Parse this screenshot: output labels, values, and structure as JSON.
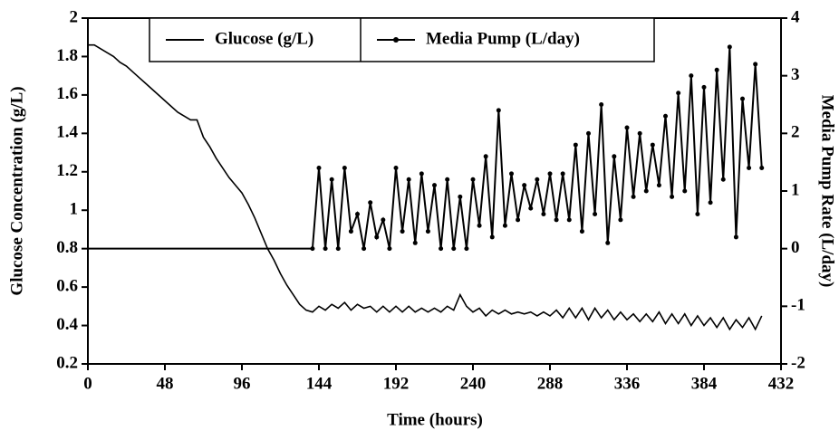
{
  "chart_data": {
    "type": "line",
    "xlabel": "Time (hours)",
    "ylabel": "Glucose Concentration (g/L)",
    "y2label": "Media Pump Rate (L/day)",
    "xlim": [
      0,
      432
    ],
    "xticks": [
      0,
      48,
      96,
      144,
      192,
      240,
      288,
      336,
      384,
      432
    ],
    "ylim": [
      0.2,
      2
    ],
    "yticks": [
      0.2,
      0.4,
      0.6,
      0.8,
      1,
      1.2,
      1.4,
      1.6,
      1.8,
      2
    ],
    "y2lim": [
      -2,
      4
    ],
    "y2ticks": [
      -2,
      -1,
      0,
      1,
      2,
      3,
      4
    ],
    "legend": "top",
    "series": [
      {
        "name": "Glucose (g/L)",
        "color": "#000000",
        "marker": false,
        "x": [
          0,
          4,
          8,
          12,
          16,
          20,
          24,
          28,
          32,
          36,
          40,
          44,
          48,
          52,
          56,
          60,
          64,
          68,
          72,
          76,
          80,
          84,
          88,
          92,
          96,
          100,
          104,
          108,
          112,
          116,
          120,
          124,
          128,
          132,
          136,
          140,
          144,
          148,
          152,
          156,
          160,
          164,
          168,
          172,
          176,
          180,
          184,
          188,
          192,
          196,
          200,
          204,
          208,
          212,
          216,
          220,
          224,
          228,
          232,
          236,
          240,
          244,
          248,
          252,
          256,
          260,
          264,
          268,
          272,
          276,
          280,
          284,
          288,
          292,
          296,
          300,
          304,
          308,
          312,
          316,
          320,
          324,
          328,
          332,
          336,
          340,
          344,
          348,
          352,
          356,
          360,
          364,
          368,
          372,
          376,
          380,
          384,
          388,
          392,
          396,
          400,
          404,
          408,
          412,
          416,
          420
        ],
        "values": [
          1.86,
          1.86,
          1.84,
          1.82,
          1.8,
          1.77,
          1.75,
          1.72,
          1.69,
          1.66,
          1.63,
          1.6,
          1.57,
          1.54,
          1.51,
          1.49,
          1.47,
          1.47,
          1.38,
          1.33,
          1.27,
          1.22,
          1.17,
          1.13,
          1.09,
          1.03,
          0.96,
          0.88,
          0.8,
          0.74,
          0.67,
          0.61,
          0.56,
          0.51,
          0.48,
          0.47,
          0.5,
          0.48,
          0.51,
          0.49,
          0.52,
          0.48,
          0.51,
          0.49,
          0.5,
          0.47,
          0.5,
          0.47,
          0.5,
          0.47,
          0.5,
          0.47,
          0.49,
          0.47,
          0.49,
          0.47,
          0.5,
          0.48,
          0.56,
          0.5,
          0.47,
          0.49,
          0.45,
          0.48,
          0.46,
          0.48,
          0.46,
          0.47,
          0.46,
          0.47,
          0.45,
          0.47,
          0.45,
          0.48,
          0.44,
          0.49,
          0.44,
          0.49,
          0.43,
          0.49,
          0.44,
          0.48,
          0.43,
          0.47,
          0.43,
          0.46,
          0.42,
          0.46,
          0.42,
          0.47,
          0.41,
          0.46,
          0.41,
          0.46,
          0.4,
          0.45,
          0.4,
          0.44,
          0.39,
          0.44,
          0.38,
          0.43,
          0.39,
          0.44,
          0.38,
          0.45
        ]
      },
      {
        "name": "Media Pump (L/day)",
        "color": "#000000",
        "marker": true,
        "axis": "y2",
        "x": [
          0,
          136,
          140,
          144,
          148,
          152,
          156,
          160,
          164,
          168,
          172,
          176,
          180,
          184,
          188,
          192,
          196,
          200,
          204,
          208,
          212,
          216,
          220,
          224,
          228,
          232,
          236,
          240,
          244,
          248,
          252,
          256,
          260,
          264,
          268,
          272,
          276,
          280,
          284,
          288,
          292,
          296,
          300,
          304,
          308,
          312,
          316,
          320,
          324,
          328,
          332,
          336,
          340,
          344,
          348,
          352,
          356,
          360,
          364,
          368,
          372,
          376,
          380,
          384,
          388,
          392,
          396,
          400,
          404,
          408,
          412,
          416,
          420
        ],
        "values": [
          0,
          0,
          0,
          1.4,
          0,
          1.2,
          0,
          1.4,
          0.3,
          0.6,
          0,
          0.8,
          0.2,
          0.5,
          0,
          1.4,
          0.3,
          1.2,
          0.1,
          1.3,
          0.3,
          1.1,
          0,
          1.2,
          0,
          0.9,
          0,
          1.2,
          0.4,
          1.6,
          0.2,
          2.4,
          0.4,
          1.3,
          0.5,
          1.1,
          0.7,
          1.2,
          0.6,
          1.3,
          0.5,
          1.3,
          0.5,
          1.8,
          0.3,
          2.0,
          0.6,
          2.5,
          0.1,
          1.6,
          0.5,
          2.1,
          0.9,
          2.0,
          1.0,
          1.8,
          1.1,
          2.3,
          0.9,
          2.7,
          1.0,
          3.0,
          0.6,
          2.8,
          0.8,
          3.1,
          1.2,
          3.5,
          0.2,
          2.6,
          1.4,
          3.2,
          1.4
        ]
      }
    ]
  }
}
